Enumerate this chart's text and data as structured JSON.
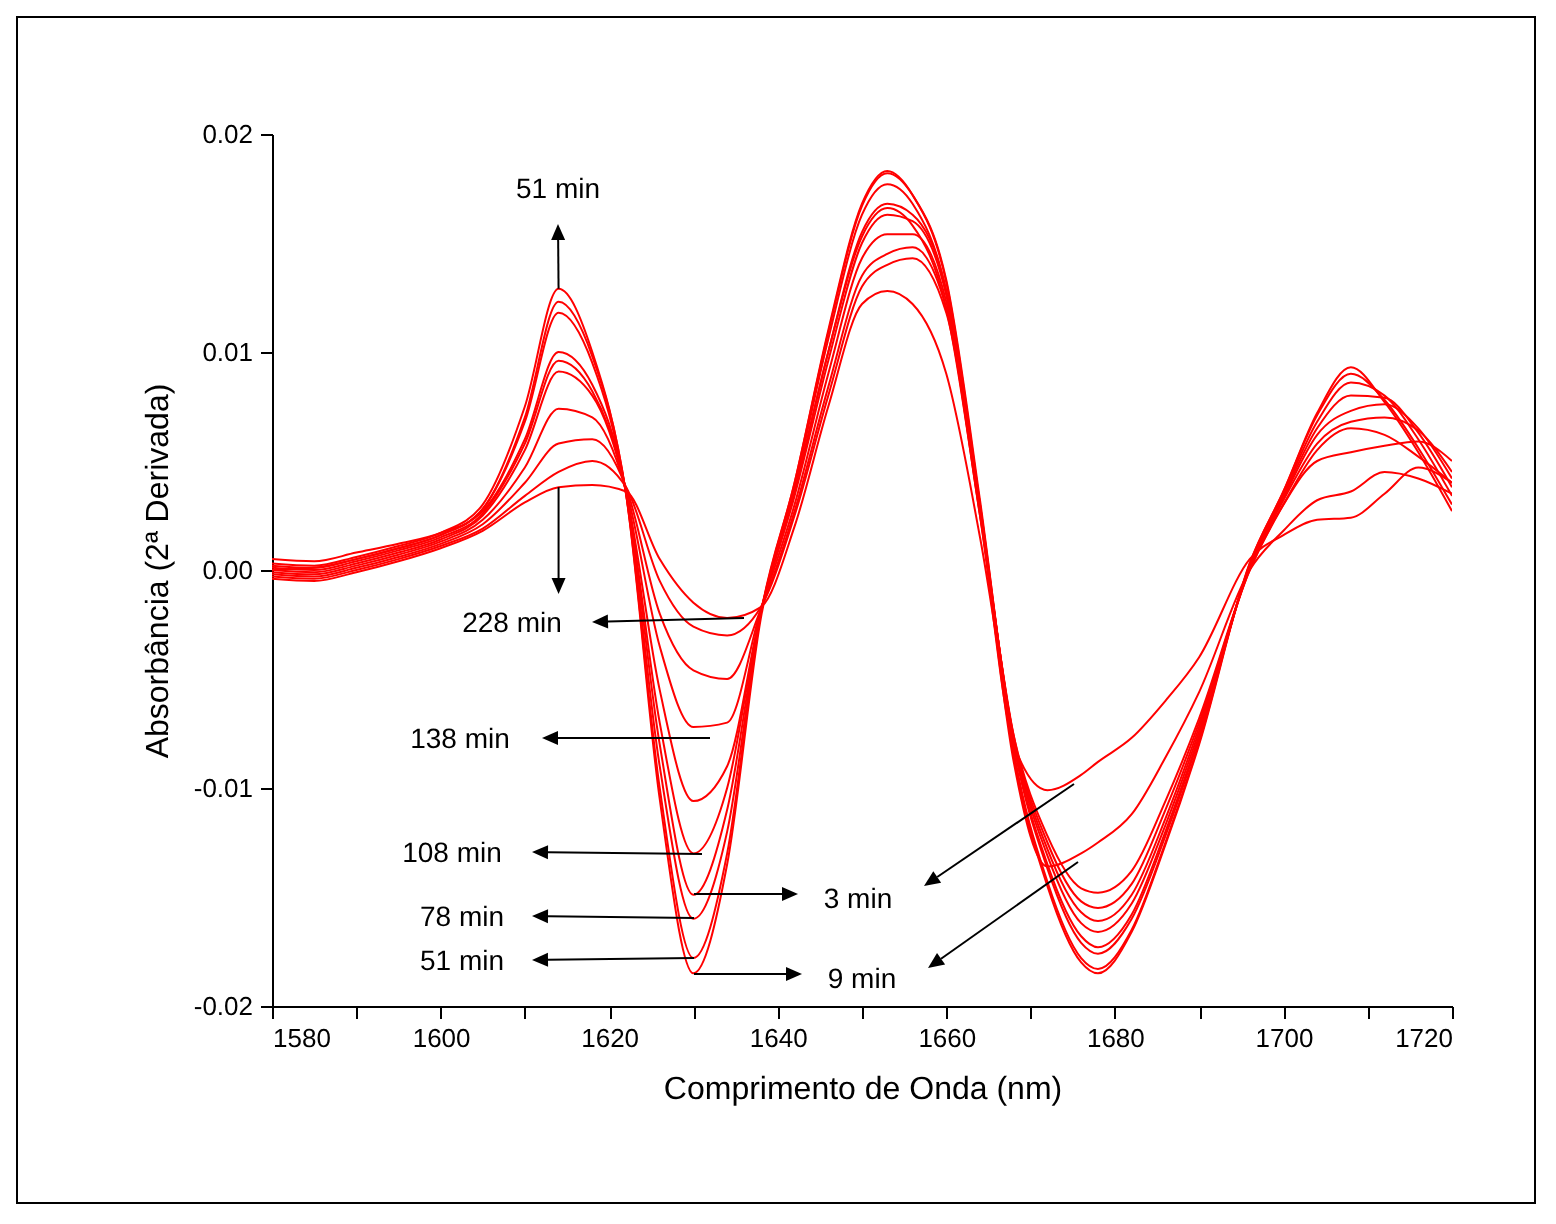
{
  "chart_data": {
    "type": "line",
    "xlabel": "Comprimento de Onda (nm)",
    "ylabel": "Absorbância (2ª Derivada)",
    "xlim": [
      1580,
      1720
    ],
    "ylim": [
      -0.02,
      0.02
    ],
    "xticks": [
      1580,
      {
        "value": 1590,
        "label": null
      },
      1600,
      {
        "value": 1610,
        "label": null
      },
      1620,
      {
        "value": 1630,
        "label": null
      },
      1640,
      {
        "value": 1650,
        "label": null
      },
      1660,
      {
        "value": 1670,
        "label": null
      },
      1680,
      {
        "value": 1690,
        "label": null
      },
      1700,
      {
        "value": 1710,
        "label": null
      },
      1720
    ],
    "yticks": [
      -0.02,
      -0.01,
      {
        "value": 0,
        "label": "0.00"
      },
      0.01,
      0.02
    ],
    "x": [
      1580,
      1585,
      1590,
      1595,
      1600,
      1605,
      1610,
      1614,
      1618,
      1622,
      1626,
      1630,
      1634,
      1638,
      1642,
      1646,
      1650,
      1653,
      1656,
      1660,
      1664,
      1668,
      1672,
      1676,
      1678,
      1682,
      1686,
      1690,
      1696,
      1700,
      1704,
      1708,
      1712,
      1716,
      1720
    ],
    "series": [
      {
        "color": "#ff0000",
        "values": [
          0.0005,
          0.0004,
          0.0008,
          0.0012,
          0.0017,
          0.0027,
          0.006,
          0.01,
          0.0085,
          0.0036,
          -0.008,
          -0.0149,
          -0.011,
          -0.002,
          0.0036,
          0.01,
          0.0153,
          0.0166,
          0.0158,
          0.012,
          0.0025,
          -0.008,
          -0.0101,
          -0.0094,
          -0.0088,
          -0.0077,
          -0.006,
          -0.004,
          0.0005,
          0.0016,
          0.0023,
          0.0024,
          0.0035,
          0.0047,
          0.004
        ]
      },
      {
        "color": "#ff0000",
        "values": [
          0.0,
          0.0001,
          0.0005,
          0.001,
          0.0016,
          0.0028,
          0.007,
          0.0123,
          0.0098,
          0.0035,
          -0.0105,
          -0.0185,
          -0.0135,
          -0.0022,
          0.0038,
          0.0106,
          0.0163,
          0.0177,
          0.0168,
          0.0128,
          0.0028,
          -0.0088,
          -0.0136,
          -0.013,
          -0.0125,
          -0.0112,
          -0.0086,
          -0.0056,
          0.0,
          0.0018,
          0.0032,
          0.0036,
          0.0045,
          0.0042,
          0.0035
        ]
      },
      {
        "color": "#ff0000",
        "values": [
          0.0003,
          0.0002,
          0.0006,
          0.0011,
          0.0017,
          0.003,
          0.0075,
          0.0129,
          0.01,
          0.0035,
          -0.01,
          -0.0178,
          -0.013,
          -0.002,
          0.004,
          0.011,
          0.0168,
          0.0183,
          0.0172,
          0.0132,
          0.003,
          -0.0085,
          -0.0145,
          -0.018,
          -0.0185,
          -0.0166,
          -0.0126,
          -0.008,
          0.0003,
          0.0036,
          0.0072,
          0.0093,
          0.0077,
          0.0054,
          0.0027
        ]
      },
      {
        "color": "#ff0000",
        "values": [
          0.0002,
          0.0001,
          0.0005,
          0.001,
          0.0016,
          0.0028,
          0.0068,
          0.0118,
          0.0095,
          0.0035,
          -0.009,
          -0.016,
          -0.012,
          -0.002,
          0.004,
          0.0109,
          0.0167,
          0.0182,
          0.0172,
          0.0133,
          0.0032,
          -0.0083,
          -0.0143,
          -0.0178,
          -0.0183,
          -0.0165,
          -0.0125,
          -0.0079,
          0.0003,
          0.0036,
          0.0071,
          0.009,
          0.0078,
          0.0056,
          0.003
        ]
      },
      {
        "color": "#ff0000",
        "values": [
          0.0001,
          0.0,
          0.0004,
          0.0009,
          0.0015,
          0.0026,
          0.0058,
          0.0096,
          0.0082,
          0.0036,
          -0.007,
          -0.013,
          -0.01,
          -0.0019,
          0.0036,
          0.01,
          0.0155,
          0.0168,
          0.0163,
          0.0128,
          0.003,
          -0.008,
          -0.0137,
          -0.0171,
          -0.0176,
          -0.016,
          -0.0122,
          -0.0077,
          0.0002,
          0.0035,
          0.0068,
          0.0086,
          0.008,
          0.006,
          0.0034
        ]
      },
      {
        "color": "#ff0000",
        "values": [
          0.0,
          -0.0001,
          0.0003,
          0.0008,
          0.0014,
          0.0025,
          0.0055,
          0.0091,
          0.008,
          0.0036,
          -0.0055,
          -0.0106,
          -0.009,
          -0.0019,
          0.0034,
          0.0096,
          0.015,
          0.0163,
          0.016,
          0.0126,
          0.0028,
          -0.0079,
          -0.0135,
          -0.0168,
          -0.0173,
          -0.0158,
          -0.012,
          -0.0076,
          0.0002,
          0.0034,
          0.0065,
          0.008,
          0.0079,
          0.0063,
          0.0038
        ]
      },
      {
        "color": "#ff0000",
        "values": [
          -0.0001,
          -0.0002,
          0.0002,
          0.0007,
          0.0013,
          0.0023,
          0.0047,
          0.0074,
          0.007,
          0.0037,
          -0.0035,
          -0.0072,
          -0.007,
          -0.0018,
          0.003,
          0.009,
          0.0143,
          0.0154,
          0.0154,
          0.0123,
          0.0027,
          -0.0078,
          -0.0131,
          -0.0162,
          -0.0166,
          -0.0153,
          -0.0117,
          -0.0074,
          0.0001,
          0.0033,
          0.0062,
          0.0073,
          0.0076,
          0.0065,
          0.0042
        ]
      },
      {
        "color": "#ff0000",
        "values": [
          -0.0002,
          -0.0003,
          0.0001,
          0.0006,
          0.0012,
          0.0021,
          0.004,
          0.0058,
          0.006,
          0.0038,
          -0.002,
          -0.0046,
          -0.005,
          -0.0018,
          0.0027,
          0.0084,
          0.0135,
          0.0145,
          0.0148,
          0.012,
          0.0026,
          -0.0077,
          -0.0128,
          -0.0157,
          -0.0161,
          -0.0149,
          -0.0114,
          -0.0072,
          0.0001,
          0.0032,
          0.0058,
          0.0068,
          0.007,
          0.0064,
          0.0045
        ]
      },
      {
        "color": "#ff0000",
        "values": [
          -0.0003,
          -0.0004,
          0.0,
          0.0005,
          0.0011,
          0.0019,
          0.0034,
          0.0045,
          0.005,
          0.0038,
          -0.0005,
          -0.0026,
          -0.003,
          -0.0017,
          0.0025,
          0.008,
          0.013,
          0.014,
          0.0143,
          0.0118,
          0.0025,
          -0.0076,
          -0.0125,
          -0.0152,
          -0.0155,
          -0.0144,
          -0.011,
          -0.007,
          0.0,
          0.003,
          0.005,
          0.0054,
          0.0057,
          0.0059,
          0.005
        ]
      },
      {
        "color": "#ff0000",
        "values": [
          -0.0004,
          -0.0005,
          -0.0001,
          0.0004,
          0.001,
          0.0018,
          0.0031,
          0.0038,
          0.0039,
          0.0036,
          0.0005,
          -0.0015,
          -0.0022,
          -0.0017,
          0.002,
          0.0075,
          0.0122,
          0.0128,
          0.0122,
          0.009,
          0.0015,
          -0.0076,
          -0.0122,
          -0.0146,
          -0.0148,
          -0.0138,
          -0.0106,
          -0.0068,
          0.0,
          0.003,
          0.0055,
          0.0065,
          0.0062,
          0.0052,
          0.004
        ]
      }
    ],
    "annotations": [
      {
        "text": "51 min",
        "x": 1614,
        "y": 0.0129
      },
      {
        "text": "228 min",
        "x": 1614,
        "y": 0.0038
      },
      "138 min",
      "108 min",
      "78 min",
      "51 min",
      "3 min",
      "9 min"
    ]
  }
}
